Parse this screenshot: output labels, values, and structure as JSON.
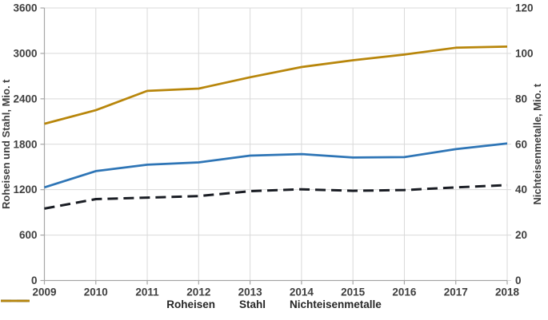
{
  "chart_data": {
    "type": "line",
    "title": "",
    "x": [
      "2009",
      "2010",
      "2011",
      "2012",
      "2013",
      "2014",
      "2015",
      "2016",
      "2017",
      "2018"
    ],
    "axes": {
      "left": {
        "label": "Roheisen und Stahl, Mio. t",
        "min": 0,
        "max": 3600,
        "step": 600
      },
      "right": {
        "label": "Nichteisenmetalle, Mio. t",
        "min": 0,
        "max": 120,
        "step": 20
      }
    },
    "grid": true,
    "legend_position": "bottom",
    "series": [
      {
        "name": "Roheisen",
        "axis": "left",
        "color": "#1a1d24",
        "dash": "dashed",
        "values": [
          950,
          1075,
          1095,
          1115,
          1180,
          1205,
          1185,
          1195,
          1230,
          1260
        ]
      },
      {
        "name": "Stahl",
        "axis": "left",
        "color": "#2e75b6",
        "dash": "solid",
        "values": [
          1230,
          1445,
          1530,
          1560,
          1650,
          1670,
          1625,
          1630,
          1735,
          1810
        ]
      },
      {
        "name": "Nichteisenmetalle",
        "axis": "right",
        "color": "#b8860b",
        "dash": "solid",
        "values": [
          69,
          75,
          83.5,
          84.5,
          89.5,
          94,
          97,
          99.5,
          102.5,
          103
        ]
      }
    ]
  },
  "colors": {
    "gridline": "#d9d9d9",
    "axis_line": "#a6a6a6",
    "tick_text": "#3f3f3f",
    "legend_text": "#262626",
    "background": "#ffffff"
  }
}
